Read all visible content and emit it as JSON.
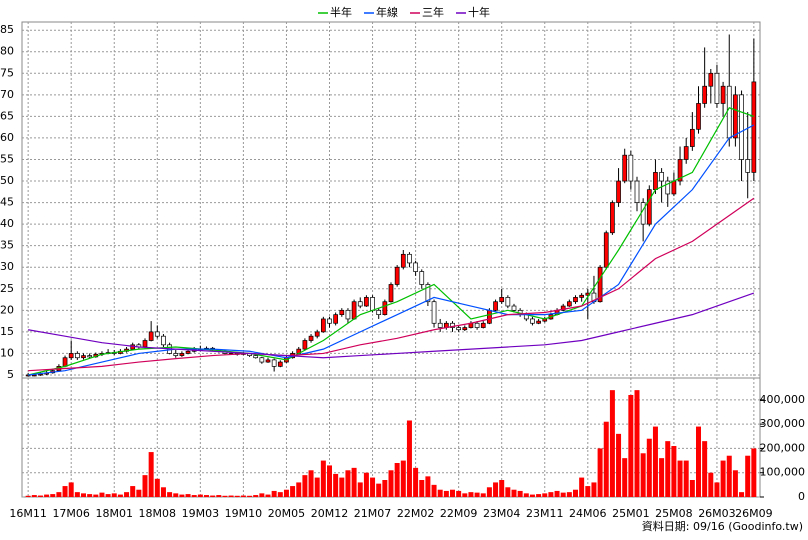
{
  "chart_data": {
    "type": "candlestick",
    "legend": [
      "半年",
      "年線",
      "三年",
      "十年"
    ],
    "footer": "資料日期: 09/16 (Goodinfo.tw)",
    "xticks": [
      {
        "value": 0,
        "label": "16M11"
      },
      {
        "value": 7,
        "label": "17M06"
      },
      {
        "value": 14,
        "label": "18M01"
      },
      {
        "value": 21,
        "label": "18M08"
      },
      {
        "value": 28,
        "label": "19M03"
      },
      {
        "value": 35,
        "label": "19M10"
      },
      {
        "value": 42,
        "label": "20M05"
      },
      {
        "value": 49,
        "label": "20M12"
      },
      {
        "value": 56,
        "label": "21M07"
      },
      {
        "value": 63,
        "label": "22M02"
      },
      {
        "value": 70,
        "label": "22M09"
      },
      {
        "value": 77,
        "label": "23M04"
      },
      {
        "value": 84,
        "label": "23M11"
      },
      {
        "value": 91,
        "label": "24M06"
      },
      {
        "value": 98,
        "label": "25M01"
      },
      {
        "value": 105,
        "label": "25M08"
      },
      {
        "value": 112,
        "label": "26M03"
      },
      {
        "value": 118,
        "label": "26M09"
      }
    ],
    "xlim": [
      -1,
      119
    ],
    "ylim": [
      4.3,
      86.9
    ],
    "yticks": [
      5,
      10,
      15,
      20,
      25,
      30,
      35,
      40,
      45,
      50,
      55,
      60,
      65,
      70,
      75,
      80,
      85
    ],
    "y2lim": [
      0,
      490000
    ],
    "y2ticks": [
      0,
      {
        "value": 100000,
        "label": "100,000"
      },
      {
        "value": 200000,
        "label": "200,000"
      },
      {
        "value": 300000,
        "label": "300,000"
      },
      {
        "value": 400000,
        "label": "400,000"
      }
    ],
    "grid": true,
    "up_color": "#ff0000",
    "down_color": "#ffffff",
    "volume_color": "#ff0000",
    "ohlc": [
      [
        5,
        5.5,
        4.6,
        5
      ],
      [
        5,
        5.4,
        4.7,
        5
      ],
      [
        5,
        5.6,
        4.8,
        5.2
      ],
      [
        5.2,
        6,
        5,
        5.5
      ],
      [
        5.5,
        6.5,
        5.3,
        6
      ],
      [
        6,
        7.5,
        5.8,
        7
      ],
      [
        7,
        9.5,
        6.8,
        9
      ],
      [
        9,
        13,
        8.5,
        10
      ],
      [
        10,
        10.5,
        8.5,
        9
      ],
      [
        9,
        10,
        8.6,
        9.5
      ],
      [
        9.5,
        10,
        8.8,
        9.2
      ],
      [
        9.2,
        10.2,
        9,
        9.8
      ],
      [
        9.8,
        10.5,
        9.4,
        10
      ],
      [
        10,
        11,
        9.8,
        10.2
      ],
      [
        10.2,
        10.8,
        9.6,
        10
      ],
      [
        10,
        11,
        9.8,
        10.5
      ],
      [
        10.5,
        11.5,
        10.2,
        11
      ],
      [
        11,
        12.5,
        10.8,
        12
      ],
      [
        12,
        12.4,
        11,
        11.5
      ],
      [
        11.5,
        13.5,
        11.2,
        13
      ],
      [
        13,
        17.5,
        12.8,
        15
      ],
      [
        15,
        16.5,
        13.5,
        14
      ],
      [
        14,
        14.5,
        11.5,
        12
      ],
      [
        12,
        12.5,
        9.8,
        10
      ],
      [
        10,
        10.8,
        9,
        9.5
      ],
      [
        9.5,
        10.5,
        9.2,
        10
      ],
      [
        10,
        11,
        9.8,
        10.5
      ],
      [
        10.5,
        11.5,
        10.2,
        11
      ],
      [
        11,
        11.8,
        10.5,
        11
      ],
      [
        11,
        11.6,
        10.8,
        11.2
      ],
      [
        11.2,
        11.5,
        10.5,
        10.8
      ],
      [
        10.8,
        11,
        10.2,
        10.5
      ],
      [
        10.5,
        10.8,
        9.8,
        10
      ],
      [
        10,
        10.4,
        9.7,
        10
      ],
      [
        10,
        10.2,
        9.5,
        9.8
      ],
      [
        9.8,
        10.3,
        9.6,
        10
      ],
      [
        10,
        10.1,
        9.2,
        9.5
      ],
      [
        9.5,
        9.8,
        8.8,
        9
      ],
      [
        9,
        9.2,
        7.6,
        8
      ],
      [
        8,
        9,
        7.8,
        8.5
      ],
      [
        8.5,
        8.8,
        5.8,
        7
      ],
      [
        7,
        8.4,
        6.8,
        8
      ],
      [
        8,
        9.4,
        7.8,
        9
      ],
      [
        9,
        10.5,
        8.8,
        10
      ],
      [
        10,
        11.5,
        9.8,
        11
      ],
      [
        11,
        13.5,
        10.8,
        13
      ],
      [
        13,
        14.5,
        12.5,
        14
      ],
      [
        14,
        15.5,
        13.5,
        15
      ],
      [
        15,
        18.5,
        14.8,
        18
      ],
      [
        18,
        18.5,
        16,
        17
      ],
      [
        17,
        19.5,
        16.5,
        19
      ],
      [
        19,
        20.5,
        18.5,
        20
      ],
      [
        20,
        20.5,
        17,
        18
      ],
      [
        18,
        22.5,
        17.8,
        22
      ],
      [
        22,
        23,
        20.5,
        21
      ],
      [
        21,
        23.5,
        20.8,
        23
      ],
      [
        23,
        23.5,
        19.5,
        20
      ],
      [
        20,
        20.5,
        18,
        19
      ],
      [
        19,
        22.5,
        18.8,
        22
      ],
      [
        22,
        26.5,
        21.8,
        26
      ],
      [
        26,
        30.5,
        25.5,
        30
      ],
      [
        30,
        34,
        29.5,
        33
      ],
      [
        33,
        33.5,
        30,
        31
      ],
      [
        31,
        31.5,
        28,
        29
      ],
      [
        29,
        29.5,
        25,
        26
      ],
      [
        26,
        26.5,
        21,
        22
      ],
      [
        22,
        22.5,
        16,
        17
      ],
      [
        17,
        18,
        15,
        16
      ],
      [
        16,
        17.5,
        15.5,
        17
      ],
      [
        17,
        17.5,
        15,
        16
      ],
      [
        16,
        16.5,
        15,
        15.5
      ],
      [
        15.5,
        16.5,
        15.2,
        16
      ],
      [
        16,
        17.5,
        15.8,
        17
      ],
      [
        17,
        17.5,
        15.5,
        16
      ],
      [
        16,
        17.5,
        15.8,
        17
      ],
      [
        17,
        20.5,
        16.8,
        20
      ],
      [
        20,
        22.5,
        19.8,
        22
      ],
      [
        22,
        25,
        21.5,
        23
      ],
      [
        23,
        23.5,
        20.5,
        21
      ],
      [
        21,
        21.5,
        19.5,
        20
      ],
      [
        20,
        20.5,
        18.5,
        19
      ],
      [
        19,
        19.5,
        17.5,
        18
      ],
      [
        18,
        18.5,
        16.5,
        17
      ],
      [
        17,
        18,
        16.8,
        17.5
      ],
      [
        17.5,
        18.5,
        17.2,
        18
      ],
      [
        18,
        19.5,
        17.8,
        19
      ],
      [
        19,
        20.5,
        18.8,
        20
      ],
      [
        20,
        21.5,
        19.8,
        21
      ],
      [
        21,
        22.5,
        20.8,
        22
      ],
      [
        22,
        23.5,
        21.5,
        23
      ],
      [
        23,
        24,
        22,
        23.5
      ],
      [
        23.5,
        25,
        18,
        24
      ],
      [
        24,
        28,
        21.5,
        22
      ],
      [
        22,
        30.5,
        21.8,
        30
      ],
      [
        30,
        38.5,
        29.5,
        38
      ],
      [
        38,
        45.5,
        37.5,
        45
      ],
      [
        45,
        53,
        44,
        50
      ],
      [
        50,
        57.5,
        49.5,
        56
      ],
      [
        56,
        57,
        48,
        50
      ],
      [
        50,
        51,
        43,
        45
      ],
      [
        45,
        46,
        36,
        40
      ],
      [
        40,
        49,
        39.5,
        48
      ],
      [
        48,
        55,
        47,
        52
      ],
      [
        52,
        53,
        45,
        50
      ],
      [
        50,
        51,
        44,
        47
      ],
      [
        47,
        52,
        46.5,
        50
      ],
      [
        50,
        58,
        49,
        55
      ],
      [
        55,
        60,
        54,
        58
      ],
      [
        58,
        66,
        57,
        62
      ],
      [
        62,
        72,
        61,
        68
      ],
      [
        68,
        81,
        67,
        72
      ],
      [
        72,
        76,
        68,
        75
      ],
      [
        75,
        77,
        67,
        68
      ],
      [
        68,
        73,
        65,
        72
      ],
      [
        72,
        84,
        58,
        60
      ],
      [
        60,
        72,
        58,
        70
      ],
      [
        70,
        71,
        50,
        55
      ],
      [
        55,
        66,
        46,
        52
      ],
      [
        52,
        83,
        50,
        73
      ]
    ],
    "volume": [
      5000,
      8000,
      6000,
      10000,
      12000,
      20000,
      45000,
      60000,
      20000,
      15000,
      12000,
      10000,
      18000,
      12000,
      15000,
      10000,
      20000,
      45000,
      30000,
      90000,
      185000,
      75000,
      40000,
      20000,
      15000,
      10000,
      12000,
      8000,
      10000,
      8000,
      6000,
      8000,
      5000,
      6000,
      5000,
      6000,
      5000,
      8000,
      15000,
      10000,
      25000,
      20000,
      30000,
      45000,
      60000,
      90000,
      110000,
      80000,
      150000,
      130000,
      95000,
      80000,
      110000,
      120000,
      60000,
      100000,
      80000,
      55000,
      70000,
      110000,
      140000,
      150000,
      315000,
      120000,
      70000,
      85000,
      50000,
      30000,
      25000,
      30000,
      25000,
      15000,
      20000,
      18000,
      15000,
      40000,
      60000,
      70000,
      40000,
      30000,
      25000,
      15000,
      10000,
      12000,
      15000,
      20000,
      25000,
      18000,
      20000,
      30000,
      80000,
      45000,
      60000,
      200000,
      310000,
      440000,
      260000,
      160000,
      420000,
      440000,
      180000,
      240000,
      290000,
      160000,
      230000,
      210000,
      150000,
      150000,
      70000,
      290000,
      230000,
      100000,
      60000,
      150000,
      170000,
      110000,
      20000,
      170000,
      200000
    ],
    "series": [
      {
        "name": "半年",
        "color": "#00c000",
        "x": [
          0,
          6,
          12,
          18,
          24,
          30,
          36,
          42,
          48,
          54,
          60,
          66,
          72,
          78,
          84,
          90,
          96,
          102,
          108,
          114,
          118
        ],
        "values": [
          5,
          7,
          9.8,
          11,
          11.5,
          10.8,
          10,
          8.5,
          13,
          19,
          22,
          26,
          18,
          20,
          18,
          21,
          34,
          48,
          52,
          67,
          65
        ]
      },
      {
        "name": "年線",
        "color": "#0050ff",
        "x": [
          0,
          6,
          12,
          18,
          24,
          30,
          36,
          42,
          48,
          54,
          60,
          66,
          72,
          78,
          84,
          90,
          96,
          102,
          108,
          114,
          118
        ],
        "values": [
          5,
          6,
          8,
          10,
          11,
          11,
          10.5,
          9,
          11,
          15,
          19,
          23,
          21,
          19,
          19,
          20,
          26,
          40,
          48,
          60,
          63
        ]
      },
      {
        "name": "三年",
        "color": "#d0005a",
        "x": [
          0,
          6,
          12,
          18,
          24,
          30,
          36,
          42,
          48,
          54,
          60,
          66,
          72,
          78,
          84,
          90,
          96,
          102,
          108,
          114,
          118
        ],
        "values": [
          6,
          6.5,
          7,
          8,
          8.8,
          9.5,
          10,
          9.5,
          10,
          12,
          13.5,
          15.5,
          17,
          19,
          19.5,
          21,
          25,
          32,
          36,
          42,
          46
        ]
      },
      {
        "name": "十年",
        "color": "#7000c0",
        "x": [
          0,
          6,
          12,
          18,
          24,
          30,
          36,
          42,
          48,
          54,
          60,
          66,
          72,
          78,
          84,
          90,
          96,
          102,
          108,
          114,
          118
        ],
        "values": [
          15.5,
          14,
          12.5,
          11.5,
          11,
          10.5,
          10,
          9.5,
          9,
          9.5,
          10,
          10.5,
          11,
          11.5,
          12,
          13,
          15,
          17,
          19,
          22,
          24
        ]
      }
    ]
  }
}
